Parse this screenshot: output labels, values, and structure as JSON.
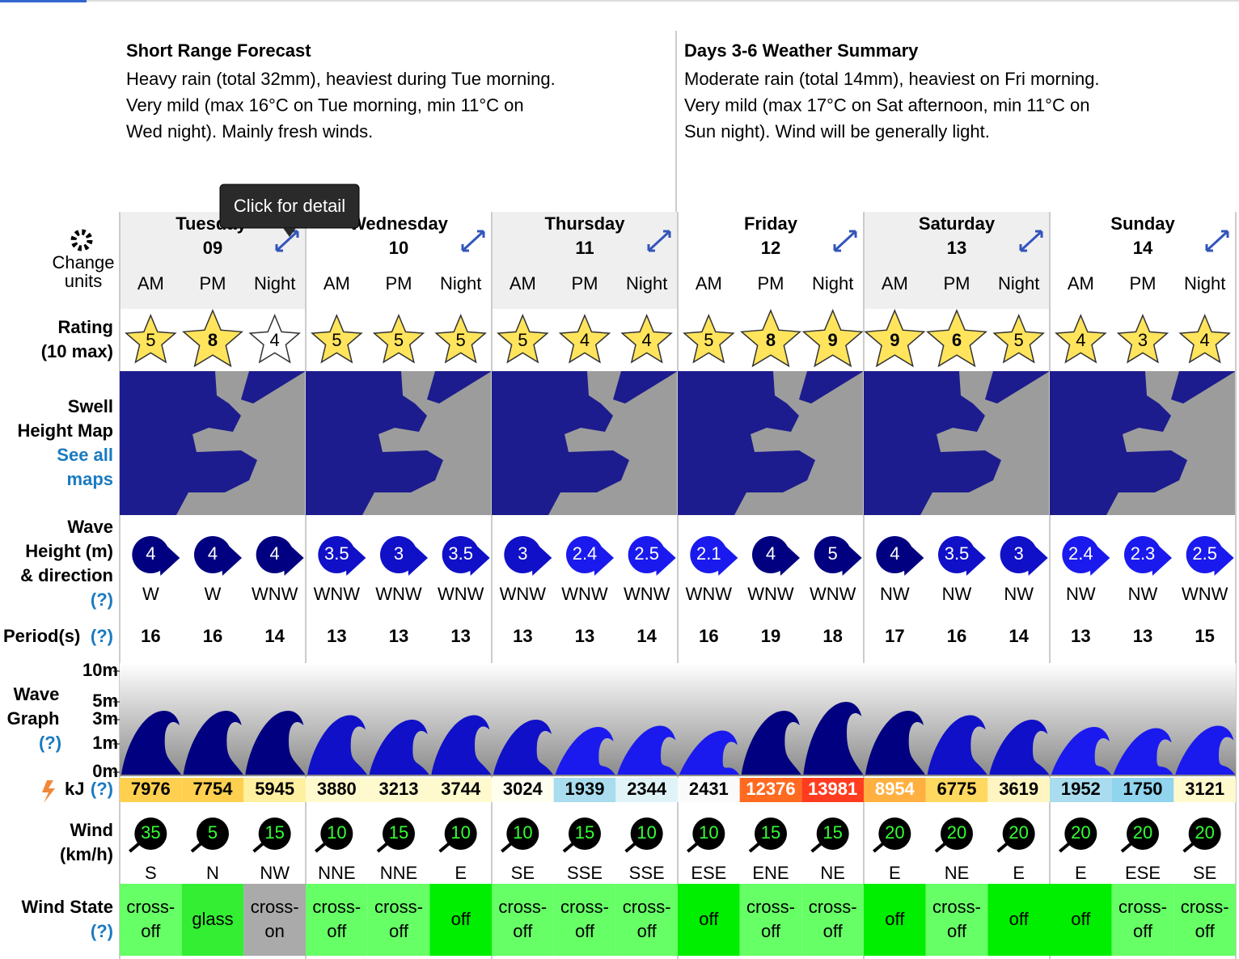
{
  "summaries": [
    {
      "title": "Short Range Forecast",
      "lines": [
        "Heavy rain (total 32mm), heaviest during Tue morning.",
        "Very mild (max 16°C on Tue morning, min 11°C on",
        "Wed night). Mainly fresh winds."
      ]
    },
    {
      "title": "Days 3-6 Weather Summary",
      "lines": [
        "Moderate rain (total 14mm), heaviest on Fri morning.",
        "Very mild (max 17°C on Sat afternoon, min 11°C on",
        "Sun night). Wind will be generally light."
      ]
    }
  ],
  "tooltip": "Click for detail",
  "change_units": [
    "Change",
    "units"
  ],
  "labels": {
    "rating": [
      "Rating",
      "(10 max)"
    ],
    "map": [
      "Swell",
      "Height Map"
    ],
    "maps_link": [
      "See all",
      "maps"
    ],
    "wave": [
      "Wave",
      "Height (m)",
      "& direction"
    ],
    "help": "(?)",
    "period": "Period(s)",
    "graph": [
      "Wave",
      "Graph"
    ],
    "kj": "kJ",
    "wind": [
      "Wind",
      "(km/h)"
    ],
    "wind_state": "Wind State"
  },
  "days": [
    {
      "name": "Tuesday",
      "date": "09"
    },
    {
      "name": "Wednesday",
      "date": "10"
    },
    {
      "name": "Thursday",
      "date": "11"
    },
    {
      "name": "Friday",
      "date": "12"
    },
    {
      "name": "Saturday",
      "date": "13"
    },
    {
      "name": "Sunday",
      "date": "14"
    }
  ],
  "parts": [
    "AM",
    "PM",
    "Night"
  ],
  "ratings": [
    5,
    8,
    4,
    5,
    5,
    5,
    5,
    4,
    4,
    5,
    8,
    9,
    9,
    6,
    5,
    4,
    3,
    4
  ],
  "rating_colors": [
    "#ffe45c",
    "#ffe45c",
    "#ffffff",
    "#ffe45c",
    "#ffe45c",
    "#ffe45c",
    "#ffe45c",
    "#ffe45c",
    "#ffe45c",
    "#ffe45c",
    "#ffe45c",
    "#ffe45c",
    "#ffe45c",
    "#ffe45c",
    "#ffe45c",
    "#ffe45c",
    "#ffe45c",
    "#ffe45c"
  ],
  "wave_heights": [
    4,
    4,
    4,
    3.5,
    3,
    3.5,
    3,
    2.4,
    2.5,
    2.1,
    4,
    5,
    4,
    3.5,
    3,
    2.4,
    2.3,
    2.5
  ],
  "wave_dirs": [
    "W",
    "W",
    "WNW",
    "WNW",
    "WNW",
    "WNW",
    "WNW",
    "WNW",
    "WNW",
    "WNW",
    "WNW",
    "WNW",
    "NW",
    "NW",
    "NW",
    "NW",
    "NW",
    "WNW"
  ],
  "periods": [
    16,
    16,
    14,
    13,
    13,
    13,
    13,
    13,
    14,
    16,
    19,
    18,
    17,
    16,
    14,
    13,
    13,
    15
  ],
  "graph_ticks": [
    {
      "value": 10,
      "label": "10m"
    },
    {
      "value": 5,
      "label": "5m"
    },
    {
      "value": 3,
      "label": "3m"
    },
    {
      "value": 1,
      "label": "1m"
    },
    {
      "value": 0,
      "label": "0m"
    }
  ],
  "energy": [
    7976,
    7754,
    5945,
    3880,
    3213,
    3744,
    3024,
    1939,
    2344,
    2431,
    12376,
    13981,
    8954,
    6775,
    3619,
    1952,
    1750,
    3121
  ],
  "energy_colors": [
    "#ffd050",
    "#ffd050",
    "#fff0a0",
    "#fffacd",
    "#fffacd",
    "#fffacd",
    "#fffff0",
    "#a8dcee",
    "#e0f4f8",
    "#fafafa",
    "#ff6a20",
    "#ff3c20",
    "#ffb040",
    "#ffd860",
    "#fff5c0",
    "#a8dcee",
    "#90d4ee",
    "#fffacd"
  ],
  "wind_speed": [
    35,
    5,
    15,
    10,
    15,
    10,
    10,
    15,
    10,
    10,
    15,
    15,
    20,
    20,
    20,
    20,
    20,
    20
  ],
  "wind_dir": [
    "S",
    "N",
    "NW",
    "NNE",
    "NNE",
    "E",
    "SE",
    "SSE",
    "SSE",
    "ESE",
    "ENE",
    "NE",
    "E",
    "NE",
    "E",
    "E",
    "ESE",
    "SE"
  ],
  "wind_state": [
    "cross-off",
    "glass",
    "cross-on",
    "cross-off",
    "cross-off",
    "off",
    "cross-off",
    "cross-off",
    "cross-off",
    "off",
    "cross-off",
    "cross-off",
    "off",
    "cross-off",
    "off",
    "off",
    "cross-off",
    "cross-off"
  ],
  "wind_state_colors": [
    "#66ff66",
    "#33ee33",
    "#aaaaaa",
    "#66ff66",
    "#66ff66",
    "#00ee00",
    "#66ff66",
    "#66ff66",
    "#66ff66",
    "#00ee00",
    "#66ff66",
    "#66ff66",
    "#00ee00",
    "#66ff66",
    "#00ee00",
    "#00ee00",
    "#66ff66",
    "#66ff66"
  ]
}
